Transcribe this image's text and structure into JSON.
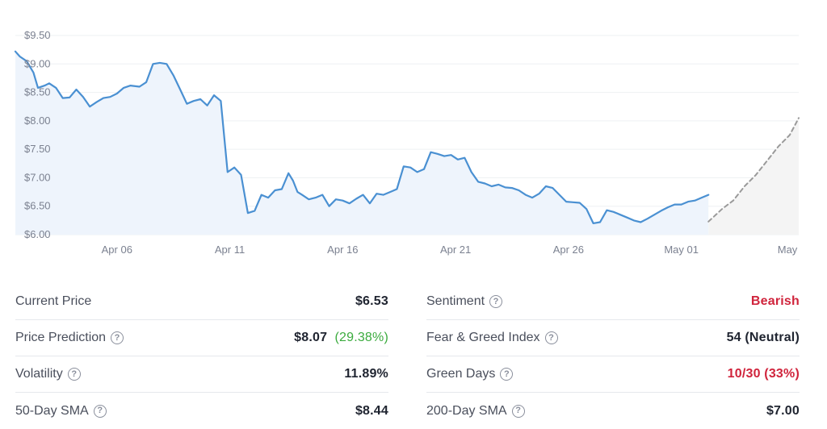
{
  "chart_data": {
    "type": "area",
    "y_ticks": [
      "$9.50",
      "$9.00",
      "$8.50",
      "$8.00",
      "$7.50",
      "$7.00",
      "$6.50",
      "$6.00"
    ],
    "y_tick_values": [
      9.5,
      9.0,
      8.5,
      8.0,
      7.5,
      7.0,
      6.5,
      6.0
    ],
    "ylim": [
      6.0,
      9.5
    ],
    "x_ticks": [
      "Apr 06",
      "Apr 11",
      "Apr 16",
      "Apr 21",
      "Apr 26",
      "May 01",
      "May"
    ],
    "x_tick_days": [
      5,
      10,
      15,
      20,
      25,
      30,
      34.7
    ],
    "xlim_days": [
      0.5,
      35.2
    ],
    "grid": true,
    "colors": {
      "line": "#4a90d2",
      "fill": "#eef4fc",
      "forecast_line": "#9a9a9a",
      "forecast_fill": "#f4f4f4",
      "grid": "#eef0f3"
    },
    "series": [
      {
        "x": [
          0.5,
          0.7,
          1.0,
          1.3,
          1.5,
          1.8,
          2.0,
          2.3,
          2.6,
          2.9,
          3.2,
          3.5,
          3.8,
          4.1,
          4.4,
          4.7,
          5.0,
          5.3,
          5.6,
          6.0,
          6.3,
          6.6,
          6.9,
          7.2,
          7.5,
          7.8,
          8.1,
          8.4,
          8.7,
          9.0,
          9.3,
          9.6,
          9.9,
          10.2,
          10.5,
          10.8,
          11.1,
          11.4,
          11.7,
          12.0,
          12.3,
          12.6,
          12.8,
          13.0,
          13.2,
          13.5,
          13.8,
          14.1,
          14.4,
          14.7,
          15.0,
          15.3,
          15.6,
          15.9,
          16.2,
          16.5,
          16.8,
          17.1,
          17.4,
          17.7,
          18.0,
          18.3,
          18.6,
          18.9,
          19.2,
          19.5,
          19.8,
          20.1,
          20.4,
          20.7,
          21.0,
          21.3,
          21.6,
          21.9,
          22.2,
          22.5,
          22.8,
          23.1,
          23.4,
          23.7,
          24.0,
          24.3,
          24.6,
          24.9,
          25.2,
          25.5,
          25.8,
          26.1,
          26.4,
          26.7,
          27.0,
          27.3,
          27.6,
          27.9,
          28.2,
          28.5,
          28.8,
          29.1,
          29.4,
          29.7,
          30.0,
          30.3,
          30.6,
          30.9,
          31.2
        ],
        "y": [
          9.22,
          9.13,
          9.05,
          8.85,
          8.58,
          8.62,
          8.66,
          8.58,
          8.4,
          8.41,
          8.55,
          8.42,
          8.25,
          8.33,
          8.4,
          8.42,
          8.48,
          8.58,
          8.62,
          8.6,
          8.68,
          9.0,
          9.02,
          9.0,
          8.8,
          8.55,
          8.3,
          8.35,
          8.38,
          8.27,
          8.45,
          8.35,
          7.1,
          7.18,
          7.05,
          6.38,
          6.42,
          6.7,
          6.65,
          6.78,
          6.8,
          7.08,
          6.95,
          6.75,
          6.7,
          6.62,
          6.65,
          6.7,
          6.5,
          6.62,
          6.6,
          6.55,
          6.63,
          6.7,
          6.55,
          6.72,
          6.7,
          6.75,
          6.8,
          7.2,
          7.18,
          7.1,
          7.15,
          7.45,
          7.42,
          7.38,
          7.4,
          7.32,
          7.35,
          7.1,
          6.93,
          6.9,
          6.85,
          6.88,
          6.83,
          6.82,
          6.78,
          6.7,
          6.65,
          6.72,
          6.85,
          6.82,
          6.7,
          6.58,
          6.57,
          6.56,
          6.45,
          6.2,
          6.22,
          6.43,
          6.4,
          6.35,
          6.3,
          6.25,
          6.22,
          6.28,
          6.35,
          6.42,
          6.48,
          6.53,
          6.53,
          6.58,
          6.6,
          6.65,
          6.7
        ],
        "color": "#4a90d2",
        "style": "solid"
      },
      {
        "x": [
          31.2,
          31.8,
          32.3,
          32.8,
          33.3,
          33.8,
          34.3,
          34.8,
          35.2
        ],
        "y": [
          6.23,
          6.45,
          6.6,
          6.85,
          7.05,
          7.3,
          7.55,
          7.75,
          8.05
        ],
        "color": "#9a9a9a",
        "style": "dashed"
      }
    ]
  },
  "stats": {
    "left": [
      {
        "label": "Current Price",
        "value": "$6.53"
      },
      {
        "label": "Price Prediction",
        "value": "$8.07",
        "change": "(29.38%)"
      },
      {
        "label": "Volatility",
        "value": "11.89%"
      },
      {
        "label": "50-Day SMA",
        "value": "$8.44"
      }
    ],
    "right": [
      {
        "label": "Sentiment",
        "value": "Bearish"
      },
      {
        "label": "Fear & Greed Index",
        "value": "54 (Neutral)"
      },
      {
        "label": "Green Days",
        "value": "10/30 (33%)"
      },
      {
        "label": "200-Day SMA",
        "value": "$7.00"
      }
    ],
    "help_glyph": "?"
  }
}
